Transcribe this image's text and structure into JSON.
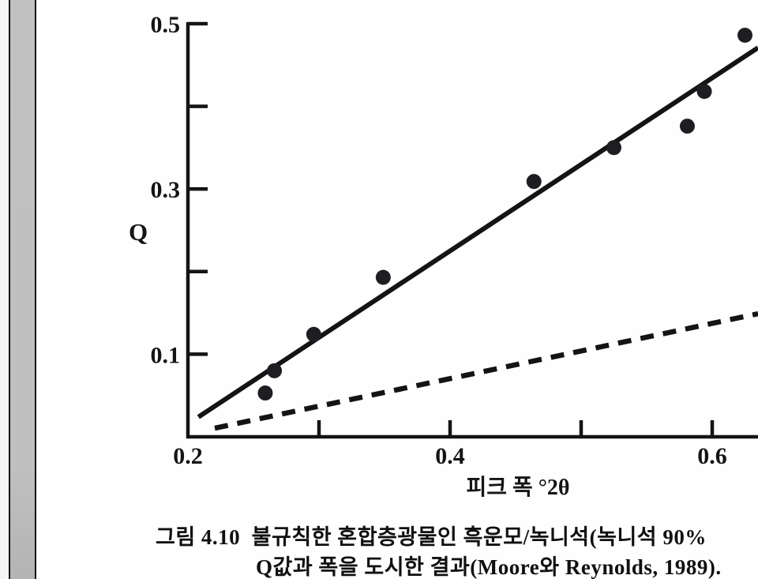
{
  "page": {
    "background": "#fefefe",
    "edge_outer_color": "#f5f5f6",
    "edge_bar_color": "#c0c0c0",
    "edge_line_color": "#141414"
  },
  "chart_data": {
    "type": "scatter",
    "title": "",
    "xlabel": "피크 폭 °2θ",
    "ylabel": "Q",
    "xlim": [
      0.2,
      0.64
    ],
    "ylim": [
      0,
      0.5
    ],
    "grid": false,
    "legend": "none",
    "ink_color": "#141414",
    "point_color": "#1e1e22",
    "point_radius_px": 9.5,
    "x_ticks": [
      {
        "value": 0.2,
        "label": "0.2",
        "tick": false
      },
      {
        "value": 0.3,
        "label": "",
        "tick": true
      },
      {
        "value": 0.4,
        "label": "0.4",
        "tick": true
      },
      {
        "value": 0.5,
        "label": "",
        "tick": true
      },
      {
        "value": 0.6,
        "label": "0.6",
        "tick": true
      }
    ],
    "y_ticks": [
      {
        "value": 0.1,
        "label": "0.1",
        "tick": true
      },
      {
        "value": 0.2,
        "label": "",
        "tick": true
      },
      {
        "value": 0.3,
        "label": "0.3",
        "tick": true
      },
      {
        "value": 0.4,
        "label": "",
        "tick": true
      },
      {
        "value": 0.5,
        "label": "0.5",
        "tick": true
      }
    ],
    "points": [
      {
        "x": 0.259,
        "y": 0.053
      },
      {
        "x": 0.266,
        "y": 0.08
      },
      {
        "x": 0.296,
        "y": 0.124
      },
      {
        "x": 0.349,
        "y": 0.193
      },
      {
        "x": 0.464,
        "y": 0.309
      },
      {
        "x": 0.525,
        "y": 0.35
      },
      {
        "x": 0.581,
        "y": 0.376
      },
      {
        "x": 0.594,
        "y": 0.418
      },
      {
        "x": 0.625,
        "y": 0.486
      }
    ],
    "regression_line": {
      "x1": 0.208,
      "y1": 0.024,
      "x2": 0.635,
      "y2": 0.471,
      "style": "solid"
    },
    "reference_line": {
      "x1": 0.2205,
      "y1": 0.0105,
      "x2": 0.635,
      "y2": 0.149,
      "style": "dashed"
    }
  },
  "caption": {
    "line1": "그림 4.10  불규칙한 혼합층광물인 흑운모/녹니석(녹니석 90%",
    "line2": "Q값과 폭을 도시한 결과(Moore와 Reynolds, 1989)."
  }
}
